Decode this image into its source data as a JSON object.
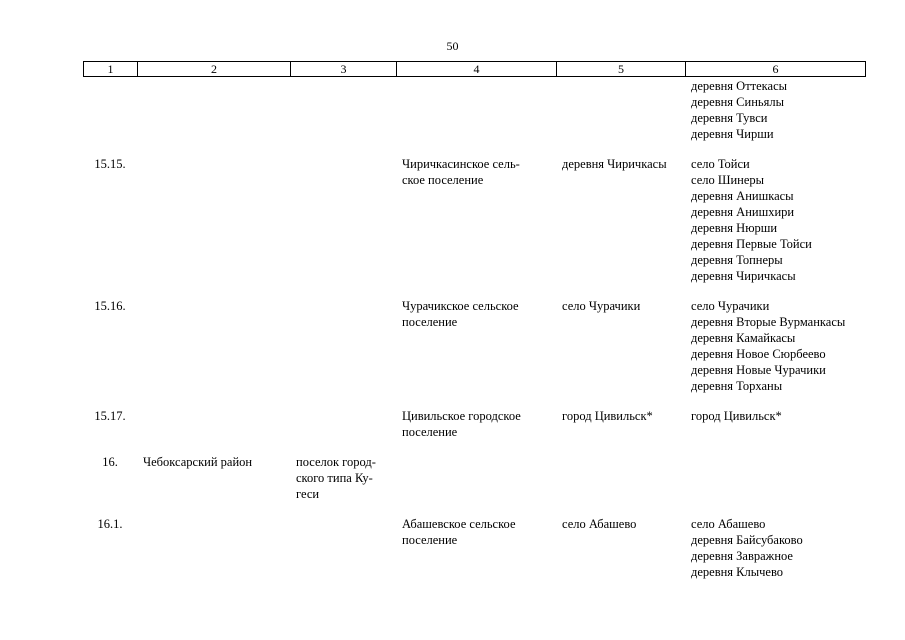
{
  "page_number": "50",
  "header": [
    "1",
    "2",
    "3",
    "4",
    "5",
    "6"
  ],
  "rows": [
    {
      "num": "",
      "district": "",
      "center": [],
      "settlement": [],
      "admin_center": [],
      "localities": [
        "деревня Оттекасы",
        "деревня Синьялы",
        "деревня Тувси",
        "деревня Чирши"
      ]
    },
    {
      "num": "15.15.",
      "district": "",
      "center": [],
      "settlement": [
        "Чиричкасинское сель-",
        "ское поселение"
      ],
      "admin_center": [
        "деревня Чиричкасы"
      ],
      "localities": [
        "село Тойси",
        "село Шинеры",
        "деревня Анишкасы",
        "деревня Анишхири",
        "деревня Нюрши",
        "деревня Первые Тойси",
        "деревня Топнеры",
        "деревня Чиричкасы"
      ]
    },
    {
      "num": "15.16.",
      "district": "",
      "center": [],
      "settlement": [
        "Чурачикское сельское",
        "поселение"
      ],
      "admin_center": [
        "село Чурачики"
      ],
      "localities": [
        "село Чурачики",
        "деревня Вторые Вурманкасы",
        "деревня Камайкасы",
        "деревня Новое Сюрбеево",
        "деревня Новые Чурачики",
        "деревня Торханы"
      ]
    },
    {
      "num": "15.17.",
      "district": "",
      "center": [],
      "settlement": [
        "Цивильское городское",
        "поселение"
      ],
      "admin_center": [
        "город Цивильск*"
      ],
      "localities": [
        "город Цивильск*"
      ]
    },
    {
      "num": "16.",
      "district": "Чебоксарский район",
      "center": [
        "поселок город-",
        "ского типа Ку-",
        "геси"
      ],
      "settlement": [],
      "admin_center": [],
      "localities": []
    },
    {
      "num": "16.1.",
      "district": "",
      "center": [],
      "settlement": [
        "Абашевское сельское",
        "поселение"
      ],
      "admin_center": [
        "село Абашево"
      ],
      "localities": [
        "село Абашево",
        "деревня Байсубаково",
        "деревня Завражное",
        "деревня Клычево"
      ]
    }
  ]
}
